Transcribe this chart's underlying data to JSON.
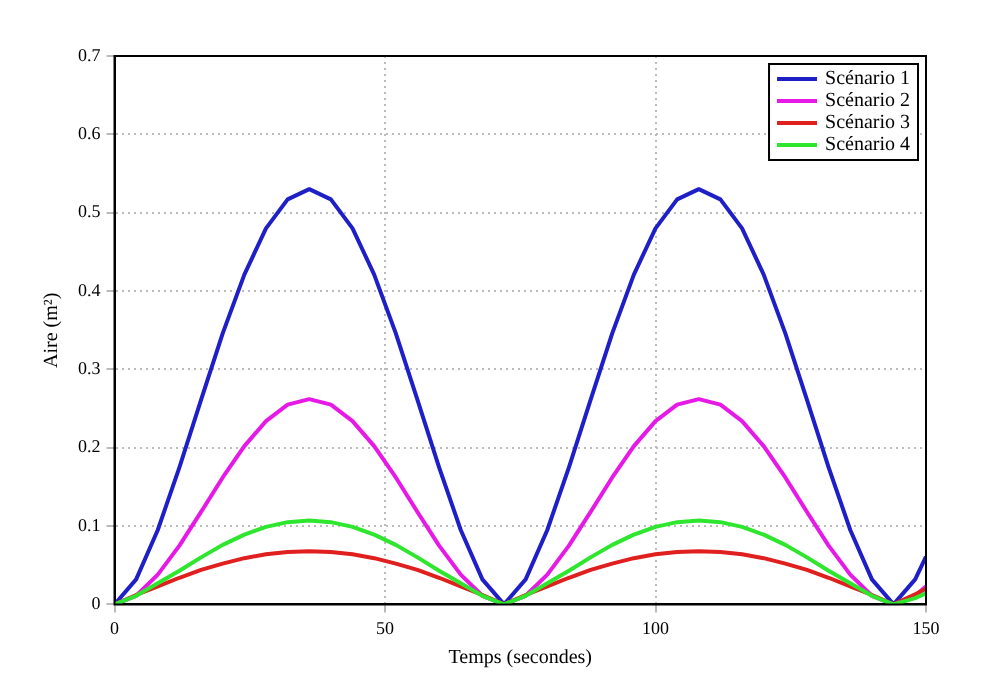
{
  "chart_data": {
    "type": "line",
    "xlabel": "Temps (secondes)",
    "ylabel": "Aire (m²)",
    "x": [
      0,
      4,
      8,
      12,
      16,
      20,
      24,
      28,
      32,
      36,
      40,
      44,
      48,
      52,
      56,
      60,
      64,
      68,
      72,
      76,
      80,
      84,
      88,
      92,
      96,
      100,
      104,
      108,
      112,
      116,
      120,
      124,
      128,
      132,
      136,
      140,
      144,
      148,
      150
    ],
    "series": [
      {
        "name": "Scénario 1",
        "color": "#1f1fc8",
        "values": [
          0,
          0.032,
          0.095,
          0.175,
          0.261,
          0.346,
          0.421,
          0.48,
          0.517,
          0.53,
          0.517,
          0.48,
          0.421,
          0.346,
          0.261,
          0.175,
          0.095,
          0.032,
          0,
          0.032,
          0.095,
          0.175,
          0.261,
          0.346,
          0.421,
          0.48,
          0.517,
          0.53,
          0.517,
          0.48,
          0.421,
          0.346,
          0.261,
          0.175,
          0.095,
          0.032,
          0,
          0.032,
          0.061
        ]
      },
      {
        "name": "Scénario 2",
        "color": "#e619e6",
        "values": [
          0,
          0.011,
          0.038,
          0.075,
          0.118,
          0.162,
          0.202,
          0.234,
          0.255,
          0.262,
          0.255,
          0.234,
          0.202,
          0.162,
          0.118,
          0.075,
          0.038,
          0.011,
          0,
          0.011,
          0.038,
          0.075,
          0.118,
          0.162,
          0.202,
          0.234,
          0.255,
          0.262,
          0.255,
          0.234,
          0.202,
          0.162,
          0.118,
          0.075,
          0.038,
          0.011,
          0,
          0.011,
          0.023
        ]
      },
      {
        "name": "Scénario 3",
        "color": "#e01f1f",
        "values": [
          0,
          0.012,
          0.023,
          0.034,
          0.044,
          0.052,
          0.059,
          0.064,
          0.067,
          0.068,
          0.067,
          0.064,
          0.059,
          0.052,
          0.044,
          0.034,
          0.023,
          0.012,
          0,
          0.012,
          0.023,
          0.034,
          0.044,
          0.052,
          0.059,
          0.064,
          0.067,
          0.068,
          0.067,
          0.064,
          0.059,
          0.052,
          0.044,
          0.034,
          0.023,
          0.012,
          0,
          0.013,
          0.02
        ]
      },
      {
        "name": "Scénario 4",
        "color": "#2ee62e",
        "values": [
          0,
          0.011,
          0.027,
          0.043,
          0.06,
          0.076,
          0.089,
          0.099,
          0.105,
          0.107,
          0.105,
          0.099,
          0.089,
          0.076,
          0.06,
          0.043,
          0.027,
          0.011,
          0,
          0.011,
          0.027,
          0.043,
          0.06,
          0.076,
          0.089,
          0.099,
          0.105,
          0.107,
          0.105,
          0.099,
          0.089,
          0.076,
          0.06,
          0.043,
          0.027,
          0.011,
          0,
          0.008,
          0.014
        ]
      }
    ],
    "xlim": [
      0,
      150
    ],
    "xticks": [
      0,
      50,
      100,
      150
    ],
    "ylim": [
      0,
      0.7
    ],
    "yticks": [
      0,
      0.1,
      0.2,
      0.3,
      0.4,
      0.5,
      0.6,
      0.7
    ],
    "grid": true,
    "legend": "top right",
    "marker": "none",
    "line_style": "solid"
  }
}
